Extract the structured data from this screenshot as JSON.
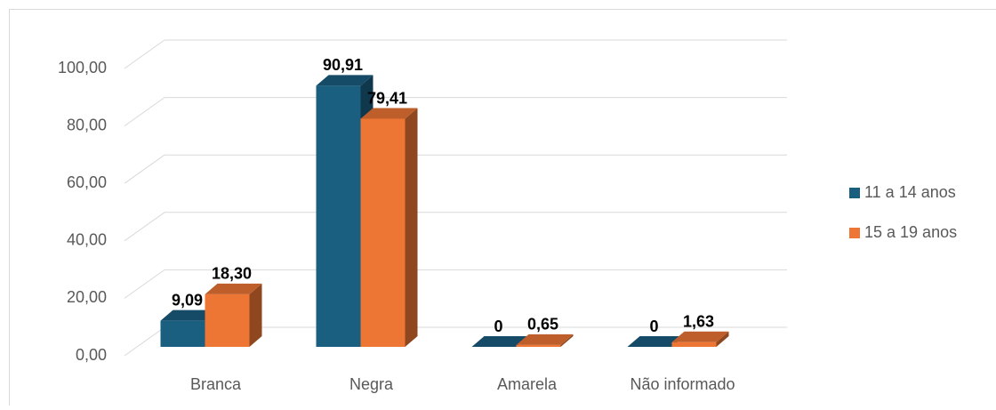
{
  "chart_data": {
    "type": "bar3d",
    "categories": [
      "Branca",
      "Negra",
      "Amarela",
      "Não informado"
    ],
    "series": [
      {
        "name": "11 a 14 anos",
        "color": "#1a5e80",
        "values": [
          9.09,
          90.91,
          0,
          0
        ],
        "value_labels": [
          "9,09",
          "90,91",
          "0",
          "0"
        ]
      },
      {
        "name": "15 a 19 anos",
        "color": "#ee7634",
        "values": [
          18.3,
          79.41,
          0.65,
          1.63
        ],
        "value_labels": [
          "18,30",
          "79,41",
          "0,65",
          "1,63"
        ]
      }
    ],
    "ylim": [
      0,
      100
    ],
    "yticks": [
      {
        "value": 0,
        "label": "0,00"
      },
      {
        "value": 20,
        "label": "20,00"
      },
      {
        "value": 40,
        "label": "40,00"
      },
      {
        "value": 60,
        "label": "60,00"
      },
      {
        "value": 80,
        "label": "80,00"
      },
      {
        "value": 100,
        "label": "100,00"
      }
    ],
    "grid": true,
    "legend": "right"
  }
}
